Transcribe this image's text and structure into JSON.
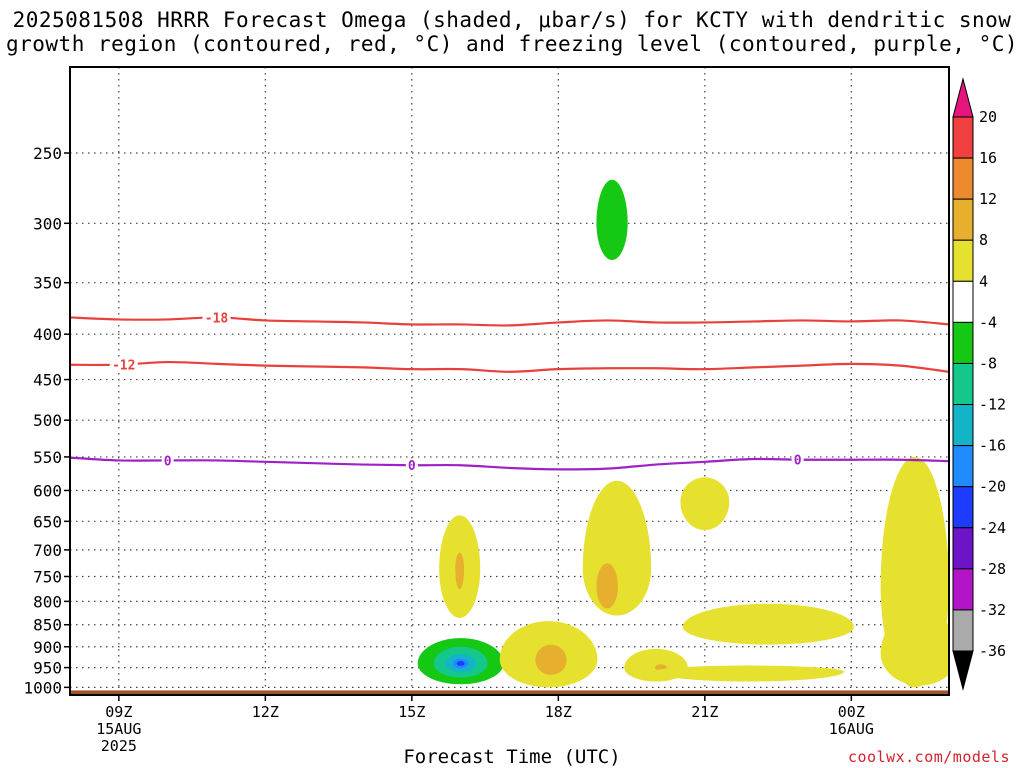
{
  "title_line1": "2025081508 HRRR Forecast Omega (shaded, μbar/s) for KCTY with dendritic snow",
  "title_line2": "growth region (contoured, red, °C) and freezing level (contoured, purple, °C)",
  "x_axis_title": "Forecast Time (UTC)",
  "credit": "coolwx.com/models",
  "chart_data": {
    "type": "heatmap",
    "title": "2025081508 HRRR Forecast Omega (shaded, μbar/s) for KCTY with dendritic snow growth region (contoured, red, °C) and freezing level (contoured, purple, °C)",
    "xlabel": "Forecast Time (UTC)",
    "ylabel": "",
    "x_ticks": [
      {
        "hour": 9,
        "lines": [
          "09Z",
          "15AUG",
          "2025"
        ]
      },
      {
        "hour": 12,
        "lines": [
          "12Z"
        ]
      },
      {
        "hour": 15,
        "lines": [
          "15Z"
        ]
      },
      {
        "hour": 18,
        "lines": [
          "18Z"
        ]
      },
      {
        "hour": 21,
        "lines": [
          "21Z"
        ]
      },
      {
        "hour": 24,
        "lines": [
          "00Z",
          "16AUG"
        ]
      }
    ],
    "xlim_hours": [
      8,
      26
    ],
    "y_ticks": [
      250,
      300,
      350,
      400,
      450,
      500,
      550,
      600,
      650,
      700,
      750,
      800,
      850,
      900,
      950,
      1000
    ],
    "ylim_hpa": [
      1020,
      200
    ],
    "y_scale": "log-pressure",
    "grid": true,
    "colorbar": {
      "labels": [
        "20",
        "16",
        "12",
        "8",
        "4",
        "-4",
        "-8",
        "-12",
        "-16",
        "-20",
        "-24",
        "-28",
        "-32",
        "-36"
      ],
      "segments": [
        {
          "from": 16,
          "to": 20,
          "color": "#f04040"
        },
        {
          "from": 12,
          "to": 16,
          "color": "#ee8a2e"
        },
        {
          "from": 8,
          "to": 12,
          "color": "#e6b02e"
        },
        {
          "from": 4,
          "to": 8,
          "color": "#e6e02e"
        },
        {
          "from": -4,
          "to": 4,
          "color": "#ffffff"
        },
        {
          "from": -8,
          "to": -4,
          "color": "#14c814"
        },
        {
          "from": -12,
          "to": -8,
          "color": "#14c88c"
        },
        {
          "from": -16,
          "to": -12,
          "color": "#14b4c8"
        },
        {
          "from": -20,
          "to": -16,
          "color": "#1e8cff"
        },
        {
          "from": -24,
          "to": -20,
          "color": "#1e3cff"
        },
        {
          "from": -28,
          "to": -24,
          "color": "#6e14c8"
        },
        {
          "from": -32,
          "to": -28,
          "color": "#b414c8"
        },
        {
          "from": -36,
          "to": -32,
          "color": "#aaaaaa"
        }
      ],
      "top_arrow_color": "#e6147d",
      "bottom_arrow_color": "#000000"
    },
    "contours": [
      {
        "label": "-18",
        "color": "#e8413c",
        "label_hour": 11.0,
        "points": [
          [
            8,
            383
          ],
          [
            9,
            385
          ],
          [
            10,
            385
          ],
          [
            11,
            383
          ],
          [
            12,
            386
          ],
          [
            13,
            387
          ],
          [
            14,
            388
          ],
          [
            15,
            390
          ],
          [
            16,
            390
          ],
          [
            17,
            391
          ],
          [
            18,
            388
          ],
          [
            19,
            386
          ],
          [
            20,
            388
          ],
          [
            21,
            388
          ],
          [
            22,
            387
          ],
          [
            23,
            386
          ],
          [
            24,
            387
          ],
          [
            25,
            386
          ],
          [
            26,
            390
          ]
        ]
      },
      {
        "label": "-12",
        "color": "#e8413c",
        "label_hour": 9.1,
        "points": [
          [
            8,
            433
          ],
          [
            9,
            433
          ],
          [
            10,
            430
          ],
          [
            11,
            432
          ],
          [
            12,
            434
          ],
          [
            13,
            435
          ],
          [
            14,
            436
          ],
          [
            15,
            438
          ],
          [
            16,
            438
          ],
          [
            17,
            441
          ],
          [
            18,
            438
          ],
          [
            19,
            437
          ],
          [
            20,
            437
          ],
          [
            21,
            438
          ],
          [
            22,
            436
          ],
          [
            23,
            434
          ],
          [
            24,
            432
          ],
          [
            25,
            434
          ],
          [
            26,
            441
          ]
        ]
      },
      {
        "label": "0",
        "color": "#a020c8",
        "label_hour": 10.0,
        "label_hours": [
          10.0,
          15.0,
          22.9
        ],
        "points": [
          [
            8,
            551
          ],
          [
            9,
            555
          ],
          [
            10,
            555
          ],
          [
            11,
            555
          ],
          [
            12,
            557
          ],
          [
            13,
            559
          ],
          [
            14,
            561
          ],
          [
            15,
            562
          ],
          [
            16,
            562
          ],
          [
            17,
            566
          ],
          [
            18,
            568
          ],
          [
            19,
            567
          ],
          [
            20,
            561
          ],
          [
            21,
            557
          ],
          [
            22,
            553
          ],
          [
            23,
            554
          ],
          [
            24,
            554
          ],
          [
            25,
            554
          ],
          [
            26,
            556
          ]
        ]
      }
    ],
    "omega_regions": [
      {
        "value": -8,
        "color": "#14c814",
        "center_hour": 19.1,
        "center_hpa": 300,
        "hour_halfwidth": 0.32,
        "hpa_top": 268,
        "hpa_bottom": 330
      },
      {
        "value": -8,
        "color": "#14c814",
        "center_hour": 16.0,
        "center_hpa": 940,
        "hour_halfwidth": 0.88,
        "hpa_top": 880,
        "hpa_bottom": 992
      },
      {
        "value": -12,
        "color": "#14c88c",
        "center_hour": 16.0,
        "center_hpa": 940,
        "hour_halfwidth": 0.55,
        "hpa_top": 900,
        "hpa_bottom": 975
      },
      {
        "value": -16,
        "color": "#14b4c8",
        "center_hour": 16.0,
        "center_hpa": 940,
        "hour_halfwidth": 0.32,
        "hpa_top": 918,
        "hpa_bottom": 962
      },
      {
        "value": -20,
        "color": "#1e8cff",
        "center_hour": 16.0,
        "center_hpa": 940,
        "hour_halfwidth": 0.16,
        "hpa_top": 928,
        "hpa_bottom": 952
      },
      {
        "value": -24,
        "color": "#1e3cff",
        "center_hour": 16.0,
        "center_hpa": 940,
        "hour_halfwidth": 0.08,
        "hpa_top": 934,
        "hpa_bottom": 946
      },
      {
        "value": 4,
        "color": "#e6e02e",
        "center_hour": 15.98,
        "center_hpa": 735,
        "hour_halfwidth": 0.42,
        "hpa_top": 640,
        "hpa_bottom": 835
      },
      {
        "value": 8,
        "color": "#e6b02e",
        "center_hour": 15.98,
        "center_hpa": 735,
        "hour_halfwidth": 0.09,
        "hpa_top": 705,
        "hpa_bottom": 775
      },
      {
        "value": 4,
        "color": "#e6e02e",
        "center_hour": 19.2,
        "center_hpa": 735,
        "hour_halfwidth": 0.7,
        "hpa_top": 585,
        "hpa_bottom": 830
      },
      {
        "value": 8,
        "color": "#e6b02e",
        "center_hour": 19.0,
        "center_hpa": 770,
        "hour_halfwidth": 0.22,
        "hpa_top": 725,
        "hpa_bottom": 815
      },
      {
        "value": 4,
        "color": "#e6e02e",
        "center_hour": 17.8,
        "center_hpa": 930,
        "hour_halfwidth": 1.0,
        "hpa_top": 842,
        "hpa_bottom": 1000
      },
      {
        "value": 8,
        "color": "#e6b02e",
        "center_hour": 17.85,
        "center_hpa": 932,
        "hour_halfwidth": 0.32,
        "hpa_top": 895,
        "hpa_bottom": 968
      },
      {
        "value": 4,
        "color": "#e6e02e",
        "center_hour": 21.0,
        "center_hpa": 618,
        "hour_halfwidth": 0.5,
        "hpa_top": 580,
        "hpa_bottom": 665
      },
      {
        "value": 4,
        "color": "#e6e02e",
        "center_hour": 22.3,
        "center_hpa": 855,
        "hour_halfwidth": 1.75,
        "hpa_top": 805,
        "hpa_bottom": 895
      },
      {
        "value": 4,
        "color": "#e6e02e",
        "center_hour": 20.0,
        "center_hpa": 950,
        "hour_halfwidth": 0.65,
        "hpa_top": 905,
        "hpa_bottom": 985
      },
      {
        "value": 8,
        "color": "#e6b02e",
        "center_hour": 20.1,
        "center_hpa": 950,
        "hour_halfwidth": 0.12,
        "hpa_top": 942,
        "hpa_bottom": 958
      },
      {
        "value": 4,
        "color": "#e6e02e",
        "center_hour": 21.9,
        "center_hpa": 960,
        "hour_halfwidth": 1.95,
        "hpa_top": 945,
        "hpa_bottom": 985
      },
      {
        "value": 4,
        "color": "#e6e02e",
        "center_hour": 25.3,
        "center_hpa": 770,
        "hour_halfwidth": 0.7,
        "hpa_top": 550,
        "hpa_bottom": 1000
      },
      {
        "value": 4,
        "color": "#e6e02e",
        "center_hour": 25.4,
        "center_hpa": 915,
        "hour_halfwidth": 0.8,
        "hpa_top": 820,
        "hpa_bottom": 995
      }
    ],
    "ground": {
      "color": "#a0522d",
      "hpa": 1008
    }
  }
}
